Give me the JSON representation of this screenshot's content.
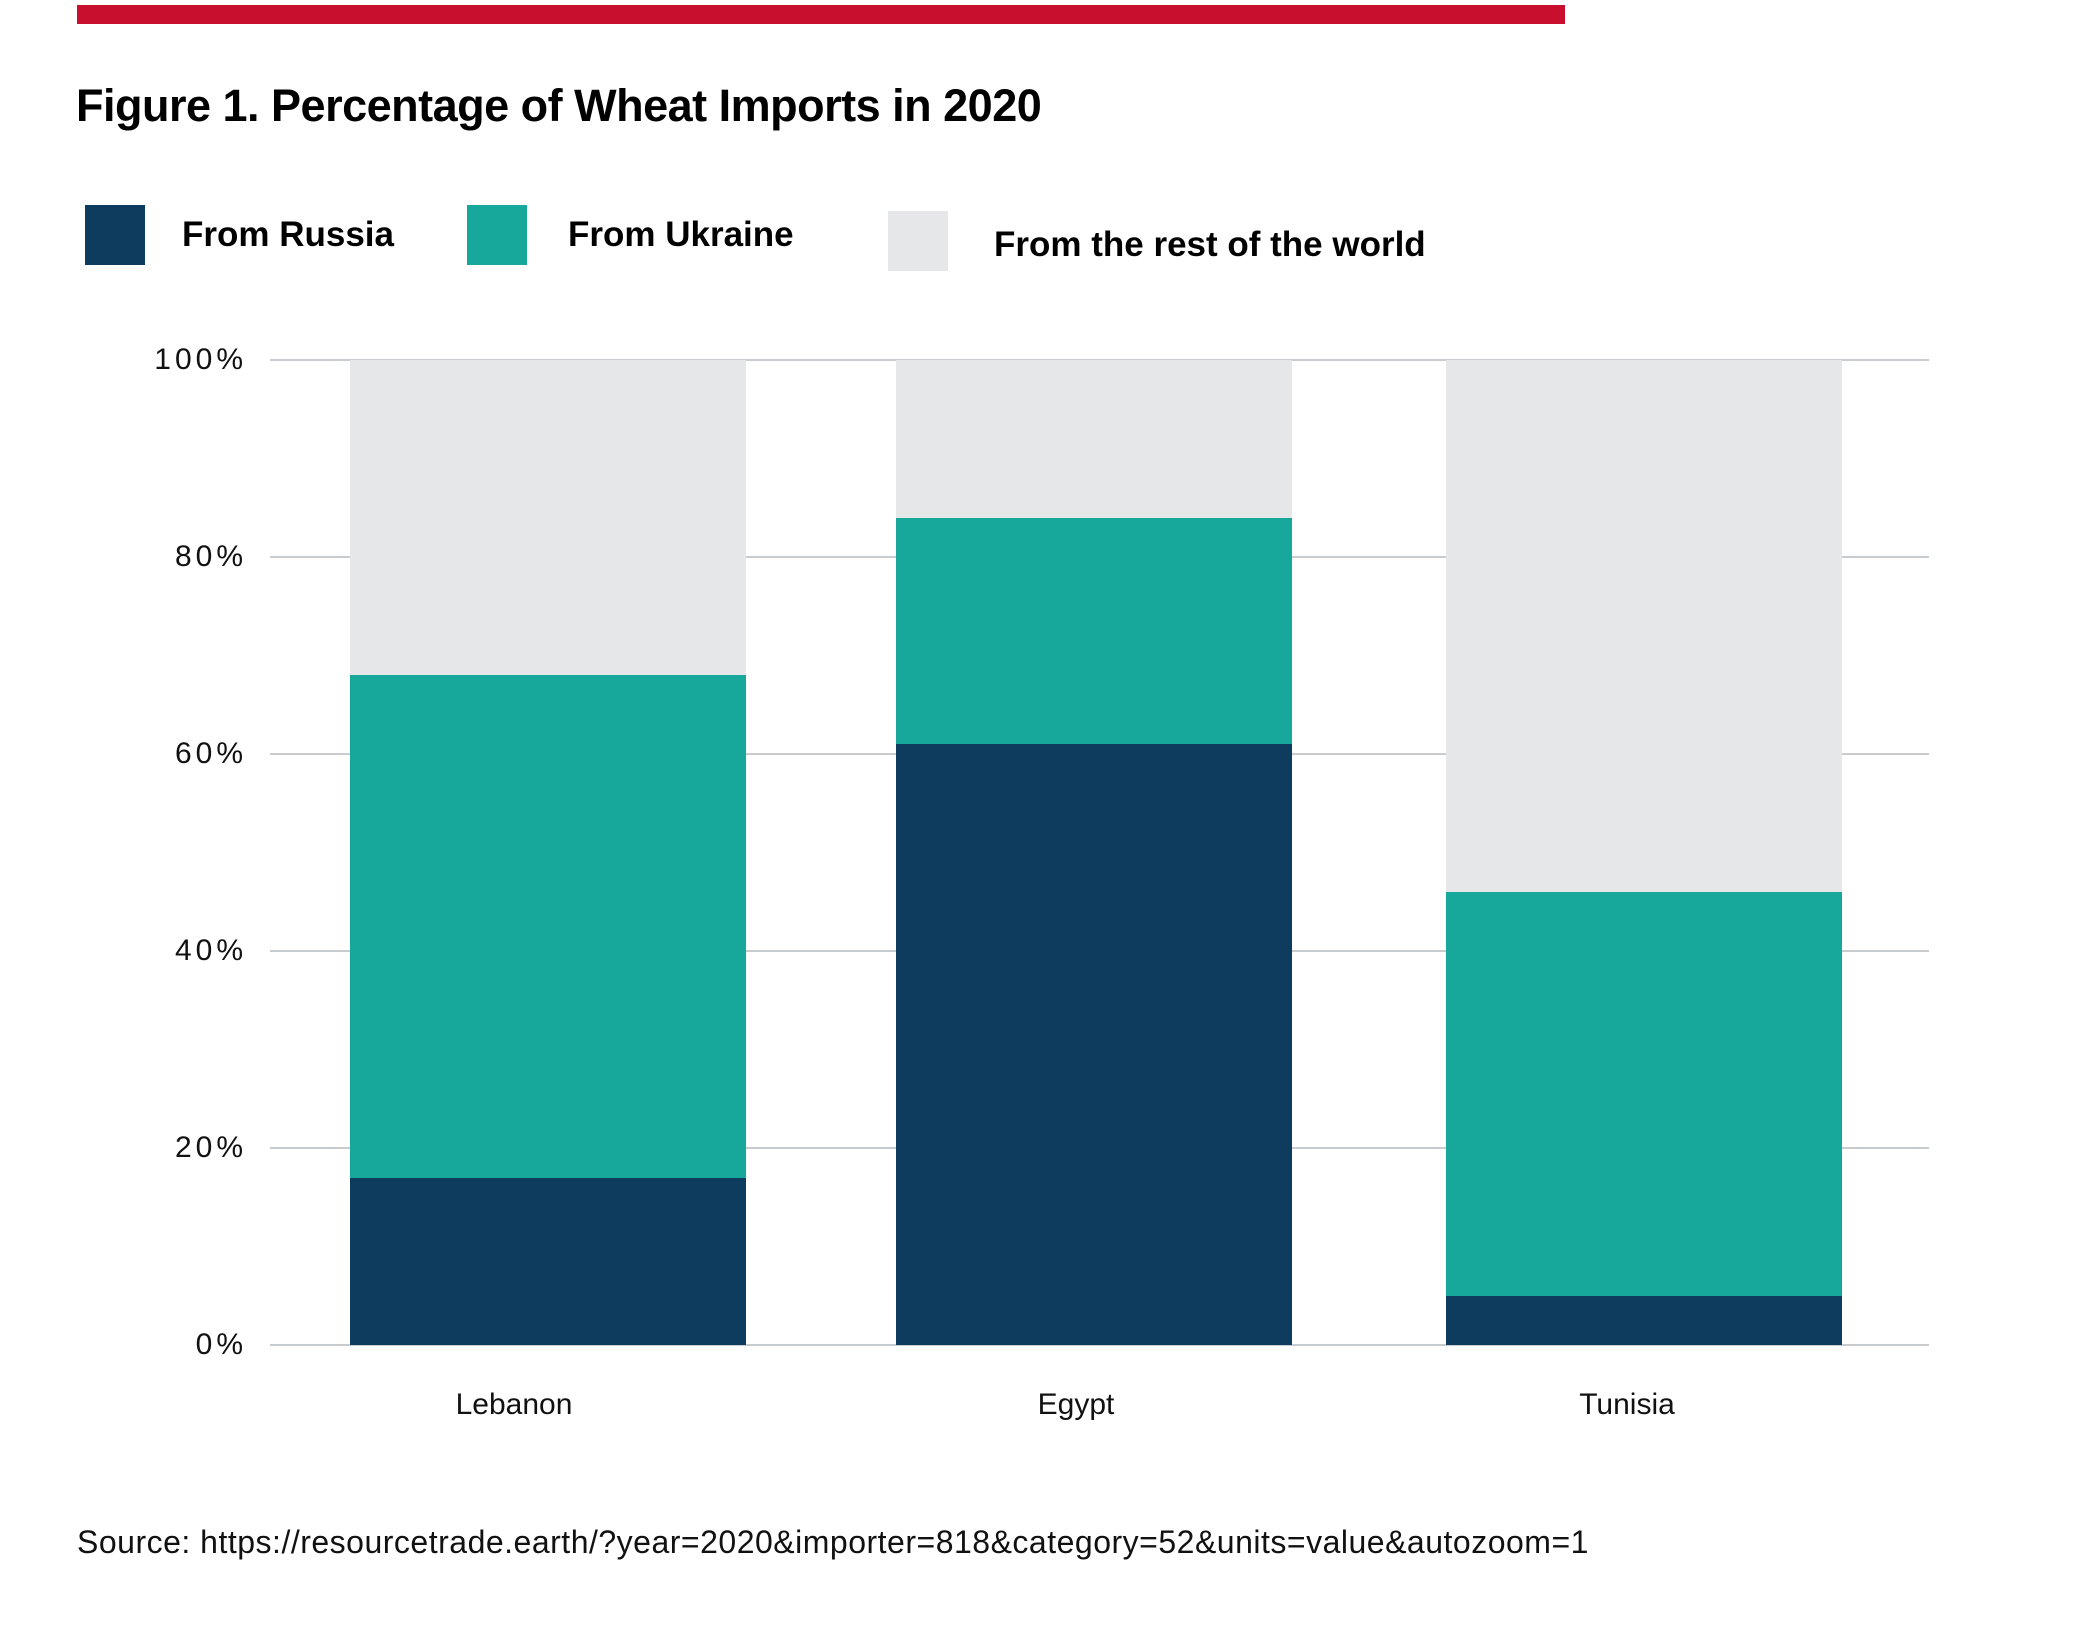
{
  "page": {
    "title": "Figure 1. Percentage of Wheat Imports in 2020",
    "source": "Source: https://resourcetrade.earth/?year=2020&importer=818&category=52&units=value&autozoom=1",
    "accent_color": "#C8102E",
    "background_color": "#FFFFFF",
    "gridline_color": "#C8CCCF",
    "text_color": "#111111"
  },
  "legend": {
    "items": [
      {
        "label": "From Russia",
        "color": "#0D3C5F"
      },
      {
        "label": "From Ukraine",
        "color": "#18A79B"
      },
      {
        "label": "From the rest of the world",
        "color": "#E6E7E8"
      }
    ]
  },
  "chart_data": {
    "type": "bar",
    "stacked": true,
    "title": "Figure 1. Percentage of Wheat Imports in 2020",
    "categories": [
      "Lebanon",
      "Egypt",
      "Tunisia"
    ],
    "series": [
      {
        "name": "From Russia",
        "color": "#0D3C5F",
        "values": [
          17,
          61,
          5
        ]
      },
      {
        "name": "From Ukraine",
        "color": "#18A79B",
        "values": [
          51,
          23,
          41
        ]
      },
      {
        "name": "From the rest of the world",
        "color": "#E6E7E8",
        "values": [
          32,
          16,
          54
        ]
      }
    ],
    "xlabel": "",
    "ylabel": "",
    "ylim": [
      0,
      100
    ],
    "yticks": [
      "0%",
      "20%",
      "40%",
      "60%",
      "80%",
      "100%"
    ],
    "grid": true,
    "legend_position": "top"
  }
}
